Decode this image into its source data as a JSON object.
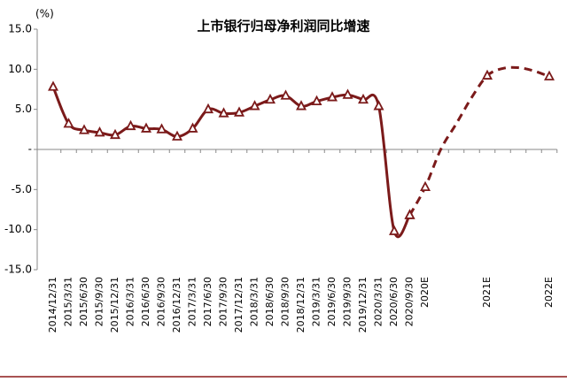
{
  "chart_data": {
    "type": "line",
    "title": "上市银行归母净利润同比增速",
    "y_unit": "(%)",
    "categories": [
      "2014/12/31",
      "2015/3/31",
      "2015/6/30",
      "2015/9/30",
      "2015/12/31",
      "2016/3/31",
      "2016/6/30",
      "2016/9/30",
      "2016/12/31",
      "2017/3/31",
      "2017/6/30",
      "2017/9/30",
      "2017/12/31",
      "2018/3/31",
      "2018/6/30",
      "2018/9/30",
      "2018/12/31",
      "2019/3/31",
      "2019/6/30",
      "2019/9/30",
      "2019/12/31",
      "2020/3/31",
      "2020/6/30",
      "2020/9/30",
      "2020E",
      null,
      null,
      null,
      "2021E",
      null,
      null,
      null,
      "2022E"
    ],
    "series": [
      {
        "color": "#7b1a1a",
        "dashed": false,
        "values": [
          7.8,
          3.2,
          2.4,
          2.1,
          1.8,
          2.9,
          2.6,
          2.5,
          1.6,
          2.6,
          5.0,
          4.5,
          4.6,
          5.4,
          6.2,
          6.7,
          5.4,
          6.0,
          6.5,
          6.8,
          6.2,
          5.4,
          -10.2,
          -8.2,
          null,
          null,
          null,
          null,
          null,
          null,
          null,
          null,
          null
        ]
      },
      {
        "color": "#7b1a1a",
        "dashed": true,
        "values": [
          null,
          null,
          null,
          null,
          null,
          null,
          null,
          null,
          null,
          null,
          null,
          null,
          null,
          null,
          null,
          null,
          null,
          null,
          null,
          null,
          null,
          null,
          null,
          -8.2,
          -4.7,
          0.0,
          3.2,
          6.5,
          9.2,
          10.1,
          10.2,
          9.8,
          9.1
        ]
      }
    ],
    "ylim": [
      -15,
      15
    ],
    "yticks": [
      {
        "value": 15,
        "label": "15.0"
      },
      {
        "value": 10,
        "label": "10.0"
      },
      {
        "value": 5,
        "label": "5.0"
      },
      {
        "value": 0,
        "label": "-"
      },
      {
        "value": -5,
        "label": "-5.0"
      },
      {
        "value": -10,
        "label": "-10.0"
      },
      {
        "value": -15,
        "label": "-15.0"
      }
    ]
  }
}
